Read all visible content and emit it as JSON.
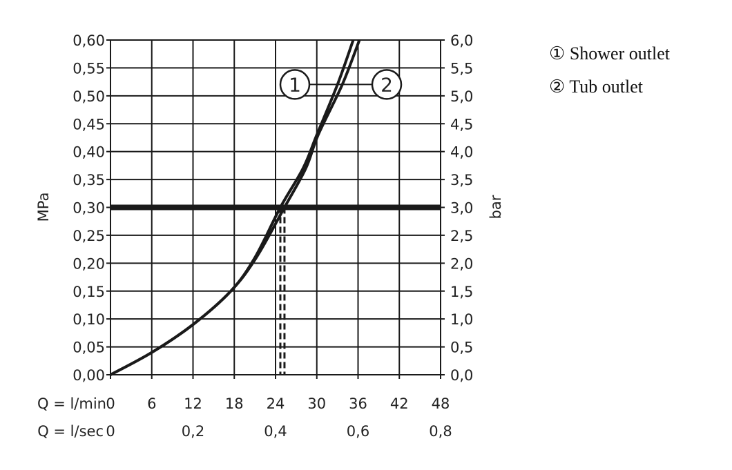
{
  "chart_data": {
    "type": "line",
    "title": "",
    "ylabel_left": "MPa",
    "ylabel_right": "bar",
    "x_row1_label": "Q = l/min",
    "x_row2_label": "Q = l/sec",
    "xlim": [
      0,
      48
    ],
    "ylim": [
      0,
      0.6
    ],
    "grid": true,
    "x_ticks_lmin": [
      "0",
      "6",
      "12",
      "18",
      "24",
      "30",
      "36",
      "42",
      "48"
    ],
    "x_ticks_lsec": [
      {
        "at": 0,
        "label": "0"
      },
      {
        "at": 12,
        "label": "0,2"
      },
      {
        "at": 24,
        "label": "0,4"
      },
      {
        "at": 36,
        "label": "0,6"
      },
      {
        "at": 48,
        "label": "0,8"
      }
    ],
    "y_ticks_mpa": [
      "0,00",
      "0,05",
      "0,10",
      "0,15",
      "0,20",
      "0,25",
      "0,30",
      "0,35",
      "0,40",
      "0,45",
      "0,50",
      "0,55",
      "0,60"
    ],
    "y_ticks_bar": [
      "0,0",
      "0,5",
      "1,0",
      "1,5",
      "2,0",
      "2,5",
      "3,0",
      "3,5",
      "4,0",
      "4,5",
      "5,0",
      "5,5",
      "6,0"
    ],
    "reference_line_y": 0.3,
    "series": [
      {
        "name": "1",
        "x": [
          0,
          6,
          12,
          17.5,
          21,
          24.7,
          28,
          30,
          33,
          35.3
        ],
        "y": [
          0,
          0.04,
          0.09,
          0.15,
          0.21,
          0.3,
          0.37,
          0.43,
          0.52,
          0.6
        ],
        "drop_x": 24.7
      },
      {
        "name": "2",
        "x": [
          0,
          6,
          12,
          17.5,
          21.2,
          25.3,
          28.4,
          30.2,
          33.7,
          36.2
        ],
        "y": [
          0,
          0.04,
          0.09,
          0.15,
          0.21,
          0.3,
          0.37,
          0.43,
          0.52,
          0.6
        ],
        "drop_x": 25.3
      }
    ],
    "legend": [
      {
        "marker": "①",
        "label": "Shower outlet"
      },
      {
        "marker": "②",
        "label": "Tub outlet"
      }
    ],
    "legend_placement": "right",
    "callouts": [
      "1",
      "2"
    ],
    "color": "#1a1a1a"
  }
}
